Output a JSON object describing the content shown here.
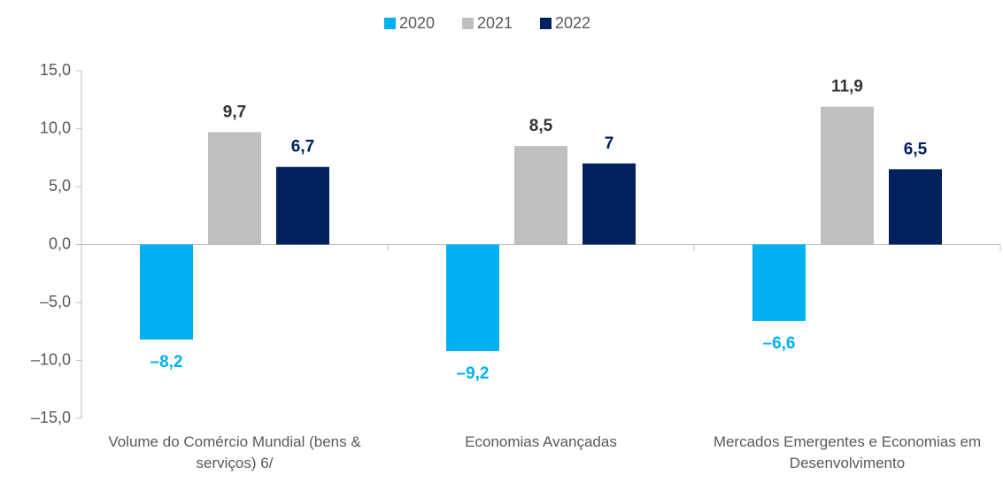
{
  "chart_data": {
    "type": "bar",
    "categories": [
      "Volume do Comércio Mundial (bens & serviços) 6/",
      "Economias Avançadas",
      "Mercados Emergentes e Economias em Desenvolvimento"
    ],
    "series": [
      {
        "name": "2020",
        "color": "#00b0f0",
        "label_color": "#00b0f0",
        "values": [
          -8.2,
          -9.2,
          -6.6
        ],
        "value_labels": [
          "–8,2",
          "–9,2",
          "–6,6"
        ]
      },
      {
        "name": "2021",
        "color": "#bfbfbf",
        "label_color": "#333333",
        "values": [
          9.7,
          8.5,
          11.9
        ],
        "value_labels": [
          "9,7",
          "8,5",
          "11,9"
        ]
      },
      {
        "name": "2022",
        "color": "#002060",
        "label_color": "#002060",
        "values": [
          6.7,
          7,
          6.5
        ],
        "value_labels": [
          "6,7",
          "7",
          "6,5"
        ]
      }
    ],
    "ylim": [
      -15,
      15
    ],
    "yticks": [
      {
        "value": 15,
        "label": "15,0"
      },
      {
        "value": 10,
        "label": "10,0"
      },
      {
        "value": 5,
        "label": "5,0"
      },
      {
        "value": 0,
        "label": "0,0"
      },
      {
        "value": -5,
        "label": "–5,0"
      },
      {
        "value": -10,
        "label": "–10,0"
      },
      {
        "value": -15,
        "label": "–15,0"
      }
    ],
    "legend": "top"
  }
}
